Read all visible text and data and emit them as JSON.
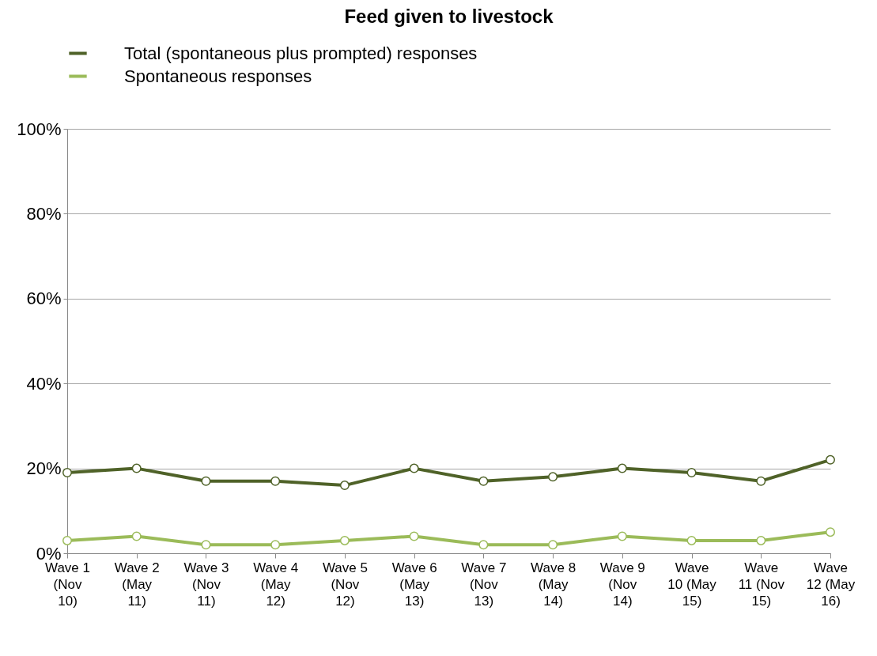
{
  "chart_data": {
    "type": "line",
    "title": "Feed given to livestock",
    "categories": [
      "Wave 1\n(Nov\n10)",
      "Wave 2\n(May\n11)",
      "Wave 3\n(Nov\n11)",
      "Wave 4\n(May\n12)",
      "Wave 5\n(Nov\n12)",
      "Wave 6\n(May\n13)",
      "Wave 7\n(Nov\n13)",
      "Wave 8\n(May\n14)",
      "Wave 9\n(Nov\n14)",
      "Wave\n10 (May\n15)",
      "Wave\n11 (Nov\n15)",
      "Wave\n12 (May\n16)"
    ],
    "series": [
      {
        "name": "Total (spontaneous plus prompted) responses",
        "color": "#4f6228",
        "values": [
          19,
          20,
          17,
          17,
          16,
          20,
          17,
          18,
          20,
          19,
          17,
          22
        ]
      },
      {
        "name": "Spontaneous responses",
        "color": "#9bbb59",
        "values": [
          3,
          4,
          2,
          2,
          3,
          4,
          2,
          2,
          4,
          3,
          3,
          5
        ]
      }
    ],
    "ylim": [
      0,
      100
    ],
    "yticks": [
      {
        "value": 0,
        "label": "0%"
      },
      {
        "value": 20,
        "label": "20%"
      },
      {
        "value": 40,
        "label": "40%"
      },
      {
        "value": 60,
        "label": "60%"
      },
      {
        "value": 80,
        "label": "80%"
      },
      {
        "value": 100,
        "label": "100%"
      }
    ],
    "grid": "y",
    "legend": "top left",
    "marker": "circle",
    "line_style": "solid"
  }
}
